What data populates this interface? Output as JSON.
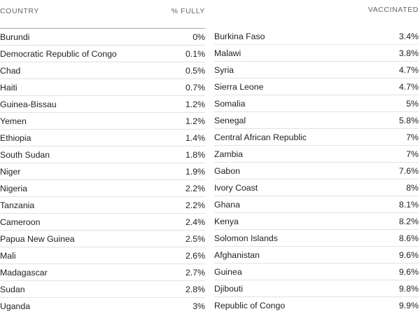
{
  "header": {
    "country_label": "COUNTRY",
    "pct_label": "% FULLY",
    "vaccinated_label": "VACCINATED"
  },
  "left_rows": [
    {
      "country": "Burundi",
      "value": "0%"
    },
    {
      "country": "Democratic Republic of Congo",
      "value": "0.1%"
    },
    {
      "country": "Chad",
      "value": "0.5%"
    },
    {
      "country": "Haiti",
      "value": "0.7%"
    },
    {
      "country": "Guinea-Bissau",
      "value": "1.2%"
    },
    {
      "country": "Yemen",
      "value": "1.2%"
    },
    {
      "country": "Ethiopia",
      "value": "1.4%"
    },
    {
      "country": "South Sudan",
      "value": "1.8%"
    },
    {
      "country": "Niger",
      "value": "1.9%"
    },
    {
      "country": "Nigeria",
      "value": "2.2%"
    },
    {
      "country": "Tanzania",
      "value": "2.2%"
    },
    {
      "country": "Cameroon",
      "value": "2.4%"
    },
    {
      "country": "Papua New Guinea",
      "value": "2.5%"
    },
    {
      "country": "Mali",
      "value": "2.6%"
    },
    {
      "country": "Madagascar",
      "value": "2.7%"
    },
    {
      "country": "Sudan",
      "value": "2.8%"
    },
    {
      "country": "Uganda",
      "value": "3%"
    }
  ],
  "right_rows": [
    {
      "country": "Burkina Faso",
      "value": "3.4%"
    },
    {
      "country": "Malawi",
      "value": "3.8%"
    },
    {
      "country": "Syria",
      "value": "4.7%"
    },
    {
      "country": "Sierra Leone",
      "value": "4.7%"
    },
    {
      "country": "Somalia",
      "value": "5%"
    },
    {
      "country": "Senegal",
      "value": "5.8%"
    },
    {
      "country": "Central African Republic",
      "value": "7%"
    },
    {
      "country": "Zambia",
      "value": "7%"
    },
    {
      "country": "Gabon",
      "value": "7.6%"
    },
    {
      "country": "Ivory Coast",
      "value": "8%"
    },
    {
      "country": "Ghana",
      "value": "8.1%"
    },
    {
      "country": "Kenya",
      "value": "8.2%"
    },
    {
      "country": "Solomon Islands",
      "value": "8.6%"
    },
    {
      "country": "Afghanistan",
      "value": "9.6%"
    },
    {
      "country": "Guinea",
      "value": "9.6%"
    },
    {
      "country": "Djibouti",
      "value": "9.8%"
    },
    {
      "country": "Republic of Congo",
      "value": "9.9%"
    }
  ]
}
